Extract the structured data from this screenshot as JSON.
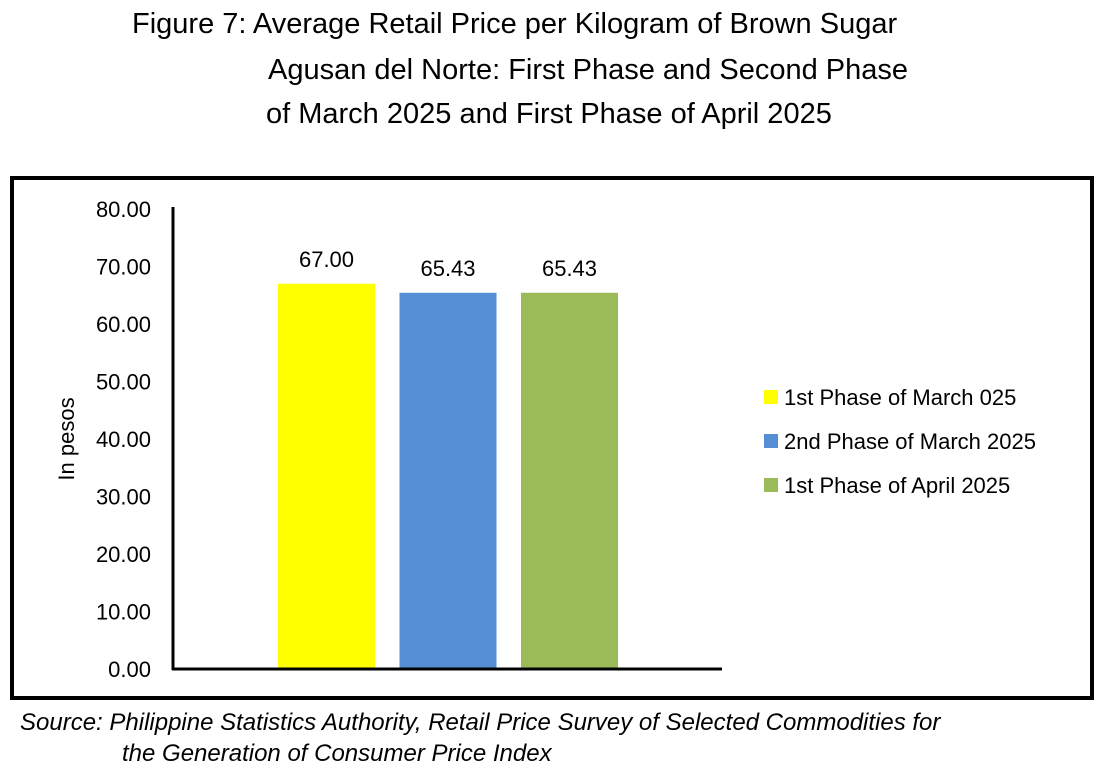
{
  "title": {
    "line1": "Figure 7: Average Retail Price per Kilogram of Brown Sugar",
    "line2": "Agusan del Norte: First Phase and Second Phase",
    "line3": "of March 2025 and First Phase of April 2025"
  },
  "source": {
    "line1": "Source: Philippine Statistics Authority, Retail Price Survey of Selected Commodities for",
    "line2": "the Generation of Consumer Price Index"
  },
  "chart_data": {
    "type": "bar",
    "ylabel": "In pesos",
    "xlabel": "",
    "ylim": [
      0,
      80
    ],
    "yticks": [
      "0.00",
      "10.00",
      "20.00",
      "30.00",
      "40.00",
      "50.00",
      "60.00",
      "70.00",
      "80.00"
    ],
    "grid": false,
    "legend_position": "right",
    "series": [
      {
        "name": "1st Phase of March 025",
        "value": 67.0,
        "label": "67.00",
        "color": "#FFFF00"
      },
      {
        "name": "2nd Phase of March 2025",
        "value": 65.43,
        "label": "65.43",
        "color": "#558ED5"
      },
      {
        "name": "1st Phase of April 2025",
        "value": 65.43,
        "label": "65.43",
        "color": "#9BBB59"
      }
    ]
  }
}
